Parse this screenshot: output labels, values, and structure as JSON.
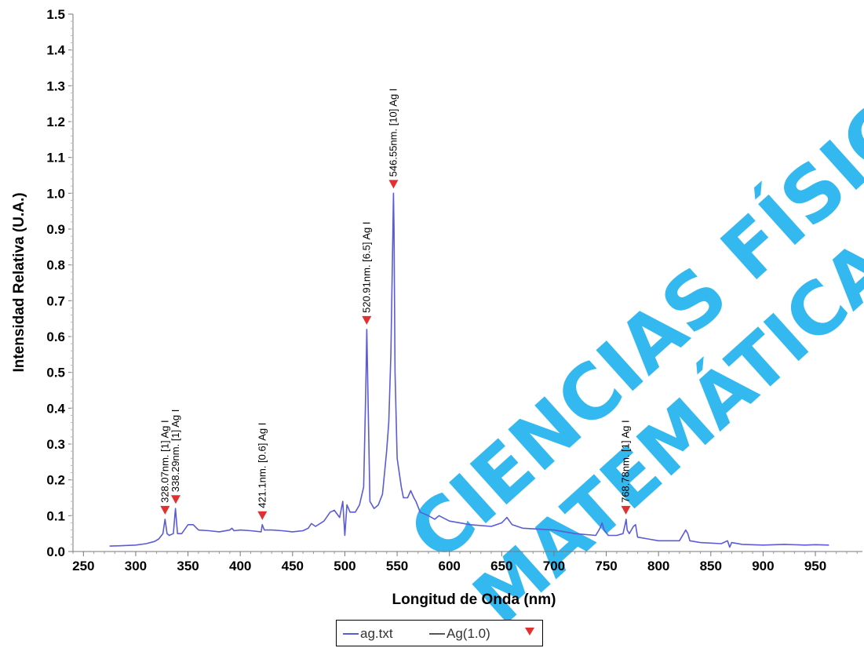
{
  "chart_data": {
    "type": "line",
    "xlabel": "Longitud de Onda (nm)",
    "ylabel": "Intensidad Relativa (U.A.)",
    "xlim": [
      240,
      995
    ],
    "ylim": [
      0.0,
      1.5
    ],
    "x_ticks": [
      250,
      300,
      350,
      400,
      450,
      500,
      550,
      600,
      650,
      700,
      750,
      800,
      850,
      900,
      950
    ],
    "y_ticks": [
      "0.0",
      "0.1",
      "0.2",
      "0.3",
      "0.4",
      "0.5",
      "0.6",
      "0.7",
      "0.8",
      "0.9",
      "1.0",
      "1.1",
      "1.2",
      "1.3",
      "1.4",
      "1.5"
    ],
    "series": [
      {
        "name": "ag.txt",
        "color": "#5b5bd6",
        "x": [
          275,
          285,
          300,
          310,
          318,
          322,
          326,
          328,
          330,
          332,
          336,
          338,
          340,
          344,
          350,
          355,
          360,
          370,
          380,
          390,
          392,
          394,
          400,
          410,
          420,
          421,
          423,
          430,
          440,
          450,
          460,
          465,
          468,
          472,
          480,
          486,
          490,
          495,
          498,
          500,
          502,
          505,
          510,
          514,
          518,
          520,
          521,
          522,
          524,
          528,
          532,
          536,
          540,
          542,
          544,
          546,
          546.5,
          547,
          548,
          550,
          554,
          556,
          560,
          563,
          566,
          568,
          572,
          580,
          586,
          590,
          600,
          620,
          640,
          650,
          655,
          660,
          670,
          700,
          720,
          740,
          744,
          746,
          748,
          752,
          760,
          766,
          768,
          769,
          770,
          772,
          776,
          778,
          780,
          790,
          800,
          820,
          824,
          826,
          828,
          830,
          840,
          860,
          866,
          868,
          870,
          880,
          900,
          920,
          940,
          950,
          963
        ],
        "y": [
          0.015,
          0.016,
          0.018,
          0.022,
          0.028,
          0.035,
          0.05,
          0.09,
          0.05,
          0.045,
          0.05,
          0.12,
          0.05,
          0.05,
          0.075,
          0.075,
          0.06,
          0.058,
          0.055,
          0.06,
          0.065,
          0.058,
          0.06,
          0.058,
          0.055,
          0.075,
          0.06,
          0.06,
          0.058,
          0.055,
          0.058,
          0.065,
          0.078,
          0.07,
          0.085,
          0.11,
          0.115,
          0.095,
          0.14,
          0.045,
          0.13,
          0.11,
          0.11,
          0.13,
          0.18,
          0.45,
          0.62,
          0.45,
          0.14,
          0.12,
          0.13,
          0.16,
          0.28,
          0.36,
          0.55,
          0.9,
          1.0,
          0.9,
          0.5,
          0.26,
          0.18,
          0.15,
          0.15,
          0.17,
          0.15,
          0.14,
          0.11,
          0.1,
          0.09,
          0.1,
          0.085,
          0.075,
          0.07,
          0.08,
          0.095,
          0.075,
          0.065,
          0.06,
          0.05,
          0.045,
          0.065,
          0.08,
          0.06,
          0.045,
          0.045,
          0.05,
          0.075,
          0.09,
          0.06,
          0.05,
          0.07,
          0.075,
          0.04,
          0.035,
          0.03,
          0.03,
          0.05,
          0.06,
          0.05,
          0.03,
          0.025,
          0.022,
          0.03,
          0.012,
          0.025,
          0.02,
          0.018,
          0.02,
          0.018,
          0.019,
          0.018
        ]
      },
      {
        "name": "Ag(1.0)",
        "color": "#555555",
        "x": [],
        "y": []
      }
    ],
    "peaks": [
      {
        "x": 328.07,
        "y": 0.09,
        "label": "328.07nm.  [1] Ag I"
      },
      {
        "x": 338.29,
        "y": 0.12,
        "label": "338.29nm.  [1] Ag I"
      },
      {
        "x": 421.1,
        "y": 0.075,
        "label": "421.1nm.   [0.6] Ag I"
      },
      {
        "x": 520.91,
        "y": 0.62,
        "label": "520.91nm.  [6.5] Ag I"
      },
      {
        "x": 546.55,
        "y": 1.0,
        "label": "546.55nm.  [10] Ag I"
      },
      {
        "x": 768.78,
        "y": 0.09,
        "label": "768.78nm.  [1] Ag I"
      }
    ],
    "marker_color": "#e03030",
    "legend_position": "bottom-center",
    "grid": false
  },
  "legend": {
    "items": [
      {
        "label": "ag.txt"
      },
      {
        "label": "Ag(1.0)"
      }
    ]
  },
  "watermark": {
    "lines": [
      "CIENCIAS FÍSICAS",
      "MATEMÁTICAS"
    ],
    "color": "#29b6ef"
  }
}
